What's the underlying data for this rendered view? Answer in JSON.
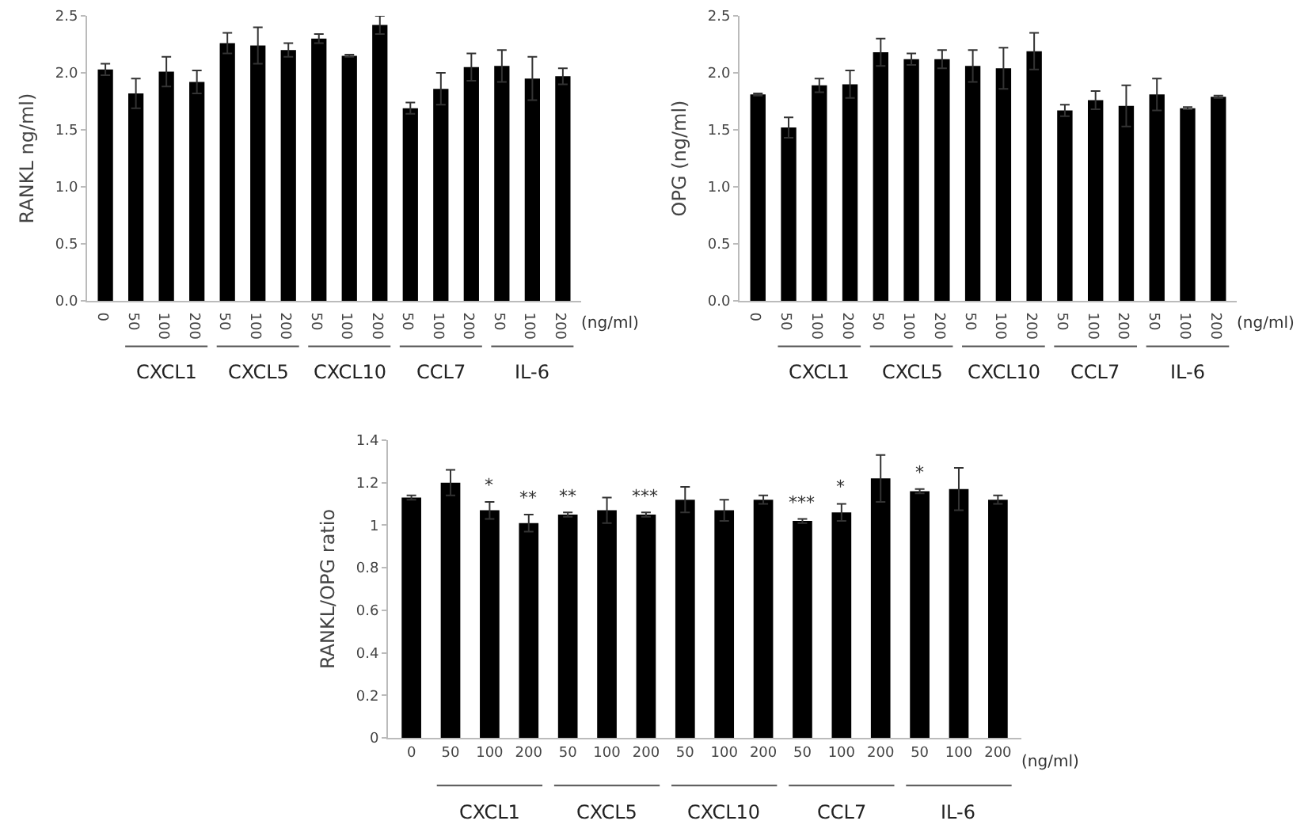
{
  "chart_data": [
    {
      "type": "bar",
      "ylabel": "RANKL ng/ml)",
      "xlabel": "(ng/ml)",
      "categories": [
        "0",
        "50",
        "100",
        "200",
        "50",
        "100",
        "200",
        "50",
        "100",
        "200",
        "50",
        "100",
        "200",
        "50",
        "100",
        "200"
      ],
      "values": [
        2.03,
        1.82,
        2.01,
        1.92,
        2.26,
        2.24,
        2.2,
        2.3,
        2.15,
        2.42,
        1.69,
        1.86,
        2.05,
        2.06,
        1.95,
        1.97
      ],
      "errors": [
        0.05,
        0.13,
        0.13,
        0.1,
        0.09,
        0.16,
        0.06,
        0.04,
        0.01,
        0.08,
        0.05,
        0.14,
        0.12,
        0.14,
        0.19,
        0.07
      ],
      "color": "#000000",
      "ylim": [
        0,
        2.5
      ],
      "yticks": [
        {
          "value": 0,
          "label": "0.0"
        },
        {
          "value": 0.5,
          "label": "0.5"
        },
        {
          "value": 1,
          "label": "1.0"
        },
        {
          "value": 1.5,
          "label": "1.5"
        },
        {
          "value": 2,
          "label": "2.0"
        },
        {
          "value": 2.5,
          "label": "2.5"
        }
      ],
      "grid": false,
      "annotations": [
        "CXCL1",
        "CXCL5",
        "CXCL10",
        "CCL7",
        "IL-6"
      ]
    },
    {
      "type": "bar",
      "ylabel": "OPG (ng/ml)",
      "xlabel": "(ng/ml)",
      "categories": [
        "0",
        "50",
        "100",
        "200",
        "50",
        "100",
        "200",
        "50",
        "100",
        "200",
        "50",
        "100",
        "200",
        "50",
        "100",
        "200"
      ],
      "values": [
        1.81,
        1.52,
        1.89,
        1.9,
        2.18,
        2.12,
        2.12,
        2.06,
        2.04,
        2.19,
        1.67,
        1.76,
        1.71,
        1.81,
        1.69,
        1.79
      ],
      "errors": [
        0.01,
        0.09,
        0.06,
        0.12,
        0.12,
        0.05,
        0.08,
        0.14,
        0.18,
        0.16,
        0.05,
        0.08,
        0.18,
        0.14,
        0.01,
        0.01
      ],
      "color": "#000000",
      "ylim": [
        0,
        2.5
      ],
      "yticks": [
        {
          "value": 0,
          "label": "0.0"
        },
        {
          "value": 0.5,
          "label": "0.5"
        },
        {
          "value": 1,
          "label": "1.0"
        },
        {
          "value": 1.5,
          "label": "1.5"
        },
        {
          "value": 2,
          "label": "2.0"
        },
        {
          "value": 2.5,
          "label": "2.5"
        }
      ],
      "grid": false,
      "annotations": [
        "CXCL1",
        "CXCL5",
        "CXCL10",
        "CCL7",
        "IL-6"
      ]
    },
    {
      "type": "bar",
      "ylabel": "RANKL/OPG ratio",
      "xlabel": "(ng/ml)",
      "categories": [
        "0",
        "50",
        "100",
        "200",
        "50",
        "100",
        "200",
        "50",
        "100",
        "200",
        "50",
        "100",
        "200",
        "50",
        "100",
        "200"
      ],
      "values": [
        1.13,
        1.2,
        1.07,
        1.01,
        1.05,
        1.07,
        1.05,
        1.12,
        1.07,
        1.12,
        1.02,
        1.06,
        1.22,
        1.16,
        1.17,
        1.12
      ],
      "errors": [
        0.01,
        0.06,
        0.04,
        0.04,
        0.01,
        0.06,
        0.01,
        0.06,
        0.05,
        0.02,
        0.01,
        0.04,
        0.11,
        0.01,
        0.1,
        0.02
      ],
      "value_labels": [
        null,
        null,
        "*",
        "**",
        "**",
        null,
        "***",
        null,
        null,
        null,
        "***",
        "*",
        null,
        "*",
        null,
        null
      ],
      "color": "#000000",
      "ylim": [
        0,
        1.4
      ],
      "yticks": [
        0,
        0.2,
        0.4,
        0.6,
        0.8,
        1,
        1.2,
        1.4
      ],
      "grid": false,
      "annotations": [
        "CXCL1",
        "CXCL5",
        "CXCL10",
        "CCL7",
        "IL-6"
      ]
    }
  ]
}
